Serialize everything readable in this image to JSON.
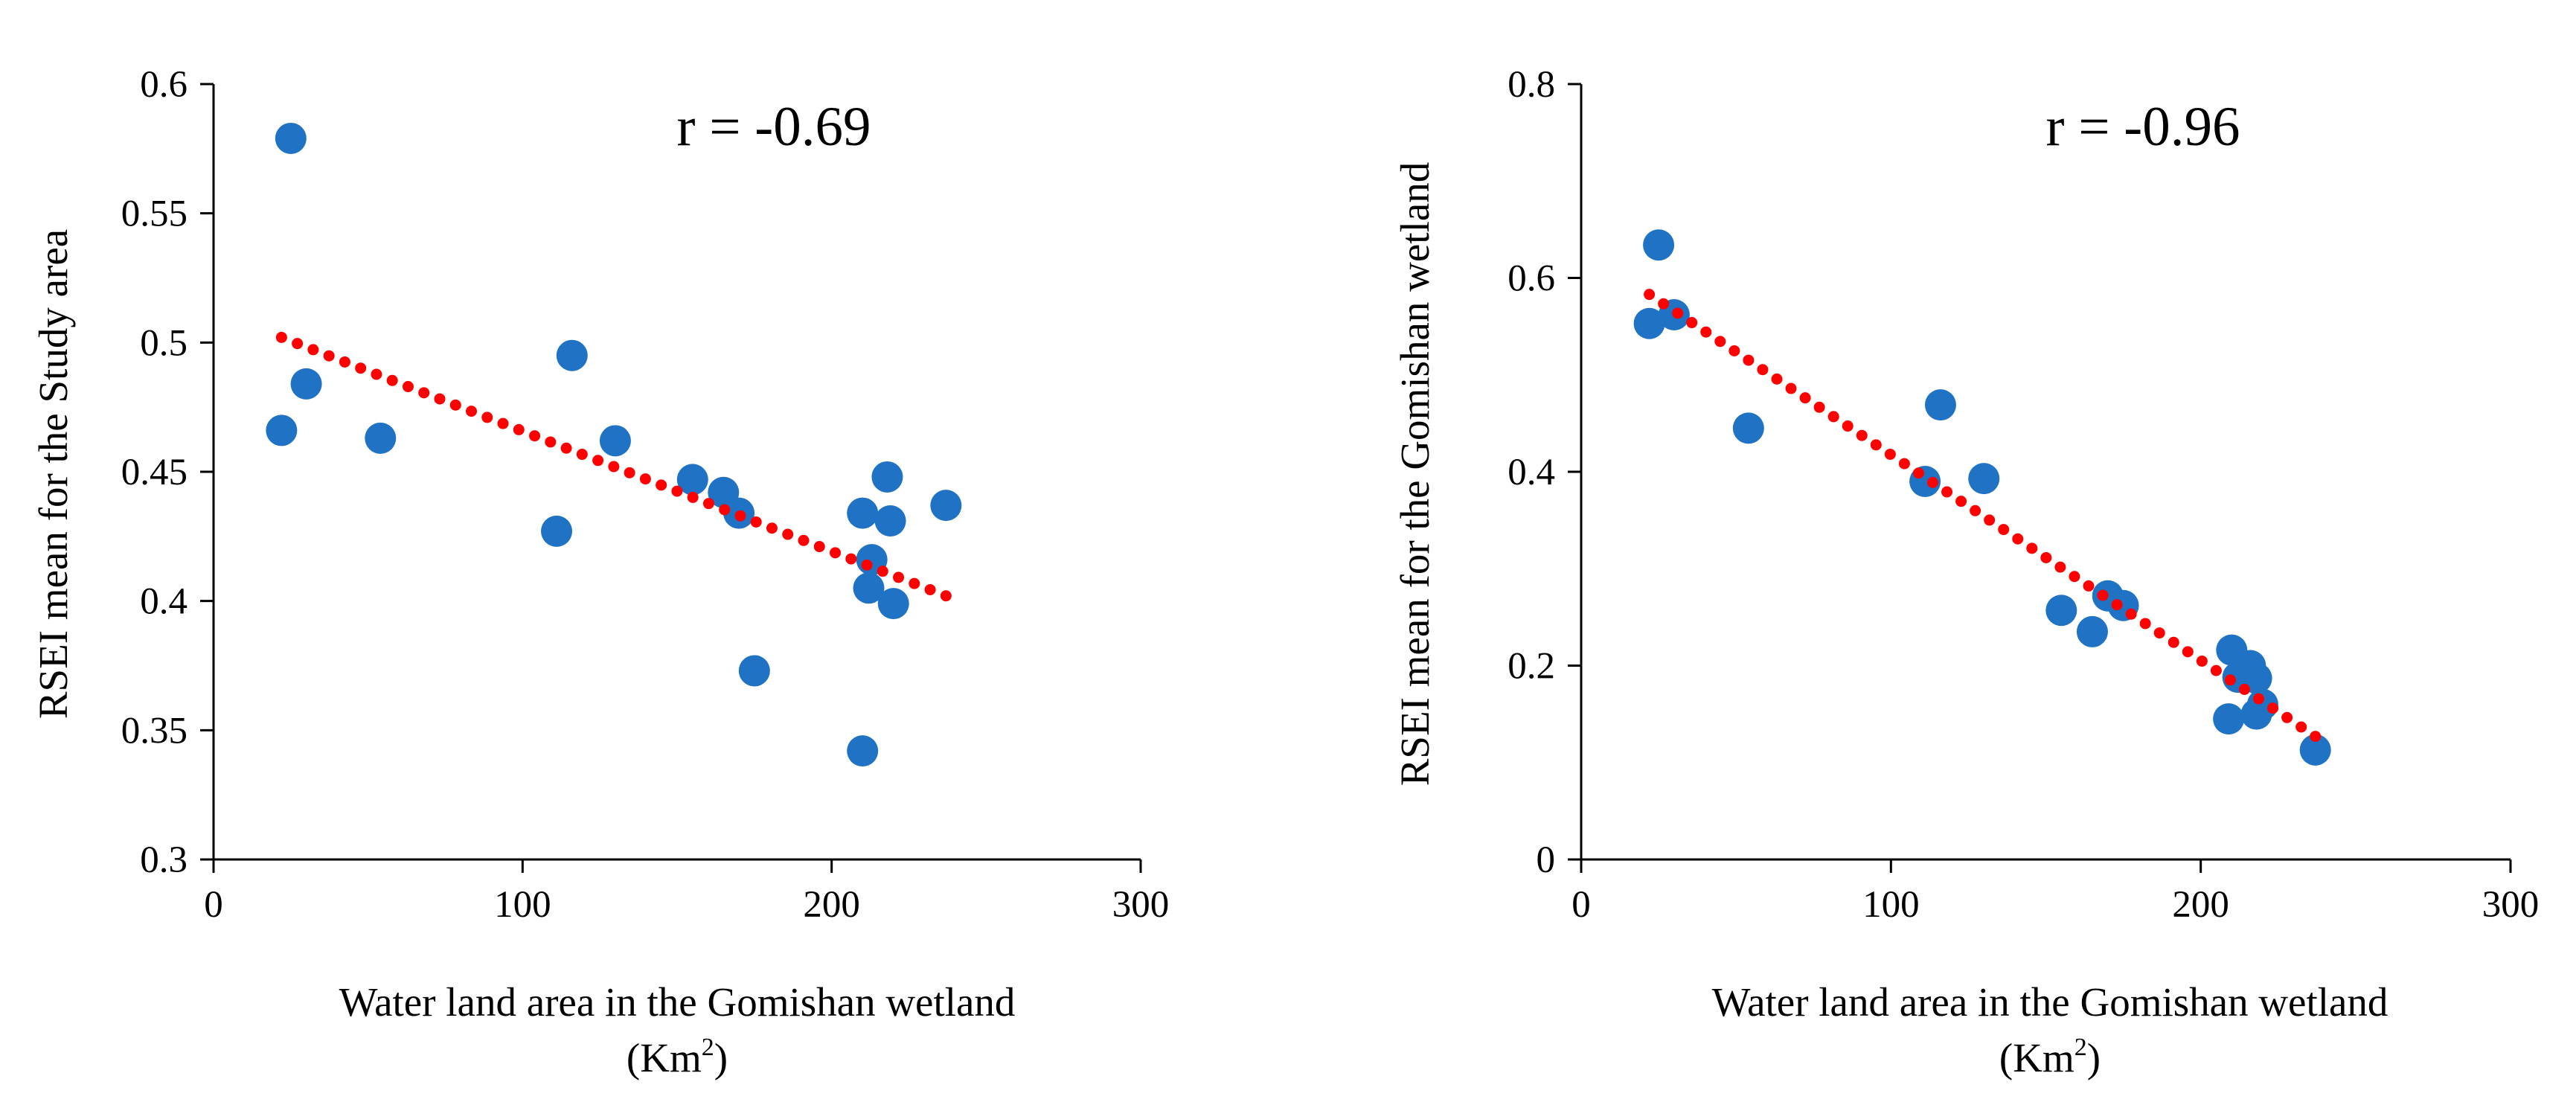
{
  "chart_data": [
    {
      "type": "scatter",
      "annotation": "r = -0.69",
      "xlabel": "Water land area in the Gomishan wetland",
      "xlabel_unit_base": "(Km",
      "xlabel_unit_sup": "2",
      "xlabel_unit_close": ")",
      "ylabel": "RSEI mean for the Study area",
      "xlim": [
        0,
        300
      ],
      "ylim": [
        0.3,
        0.6
      ],
      "x_ticks": [
        0,
        100,
        200,
        300
      ],
      "y_ticks": [
        0.3,
        0.35,
        0.4,
        0.45,
        0.5,
        0.55,
        0.6
      ],
      "x_tick_labels": [
        "0",
        "100",
        "200",
        "300"
      ],
      "y_tick_labels": [
        "0.3",
        "0.35",
        "0.4",
        "0.45",
        "0.5",
        "0.55",
        "0.6"
      ],
      "grid": false,
      "legend": "none",
      "marker_color": "#1f72c4",
      "trendline": {
        "style": "dotted",
        "color": "#ff0000",
        "x": [
          22,
          237
        ],
        "y": [
          0.502,
          0.402
        ]
      },
      "series": [
        {
          "name": "RSEI",
          "points": [
            {
              "x": 25,
              "y": 0.579
            },
            {
              "x": 30,
              "y": 0.484
            },
            {
              "x": 22,
              "y": 0.466
            },
            {
              "x": 54,
              "y": 0.463
            },
            {
              "x": 116,
              "y": 0.495
            },
            {
              "x": 130,
              "y": 0.462
            },
            {
              "x": 111,
              "y": 0.427
            },
            {
              "x": 155,
              "y": 0.447
            },
            {
              "x": 165,
              "y": 0.442
            },
            {
              "x": 170,
              "y": 0.434
            },
            {
              "x": 175,
              "y": 0.373
            },
            {
              "x": 210,
              "y": 0.434
            },
            {
              "x": 218,
              "y": 0.448
            },
            {
              "x": 219,
              "y": 0.431
            },
            {
              "x": 213,
              "y": 0.416
            },
            {
              "x": 212,
              "y": 0.405
            },
            {
              "x": 220,
              "y": 0.399
            },
            {
              "x": 237,
              "y": 0.437
            },
            {
              "x": 210,
              "y": 0.342
            }
          ]
        }
      ]
    },
    {
      "type": "scatter",
      "annotation": "r = -0.96",
      "xlabel": "Water land area in the Gomishan wetland",
      "xlabel_unit_base": "(Km",
      "xlabel_unit_sup": "2",
      "xlabel_unit_close": ")",
      "ylabel": "RSEI mean for the Gomishan wetland",
      "xlim": [
        0,
        300
      ],
      "ylim": [
        0,
        0.8
      ],
      "x_ticks": [
        0,
        100,
        200,
        300
      ],
      "y_ticks": [
        0,
        0.2,
        0.4,
        0.6,
        0.8
      ],
      "x_tick_labels": [
        "0",
        "100",
        "200",
        "300"
      ],
      "y_tick_labels": [
        "0",
        "0.2",
        "0.4",
        "0.6",
        "0.8"
      ],
      "grid": false,
      "legend": "none",
      "marker_color": "#1f72c4",
      "trendline": {
        "style": "dotted",
        "color": "#ff0000",
        "x": [
          22,
          237
        ],
        "y": [
          0.583,
          0.127
        ]
      },
      "series": [
        {
          "name": "RSEI",
          "points": [
            {
              "x": 25,
              "y": 0.634
            },
            {
              "x": 30,
              "y": 0.562
            },
            {
              "x": 22,
              "y": 0.553
            },
            {
              "x": 54,
              "y": 0.445
            },
            {
              "x": 116,
              "y": 0.469
            },
            {
              "x": 111,
              "y": 0.39
            },
            {
              "x": 130,
              "y": 0.393
            },
            {
              "x": 155,
              "y": 0.257
            },
            {
              "x": 165,
              "y": 0.235
            },
            {
              "x": 170,
              "y": 0.272
            },
            {
              "x": 175,
              "y": 0.262
            },
            {
              "x": 210,
              "y": 0.216
            },
            {
              "x": 212,
              "y": 0.188
            },
            {
              "x": 216,
              "y": 0.2
            },
            {
              "x": 218,
              "y": 0.187
            },
            {
              "x": 220,
              "y": 0.16
            },
            {
              "x": 218,
              "y": 0.15
            },
            {
              "x": 209,
              "y": 0.145
            },
            {
              "x": 237,
              "y": 0.113
            }
          ]
        }
      ]
    }
  ]
}
